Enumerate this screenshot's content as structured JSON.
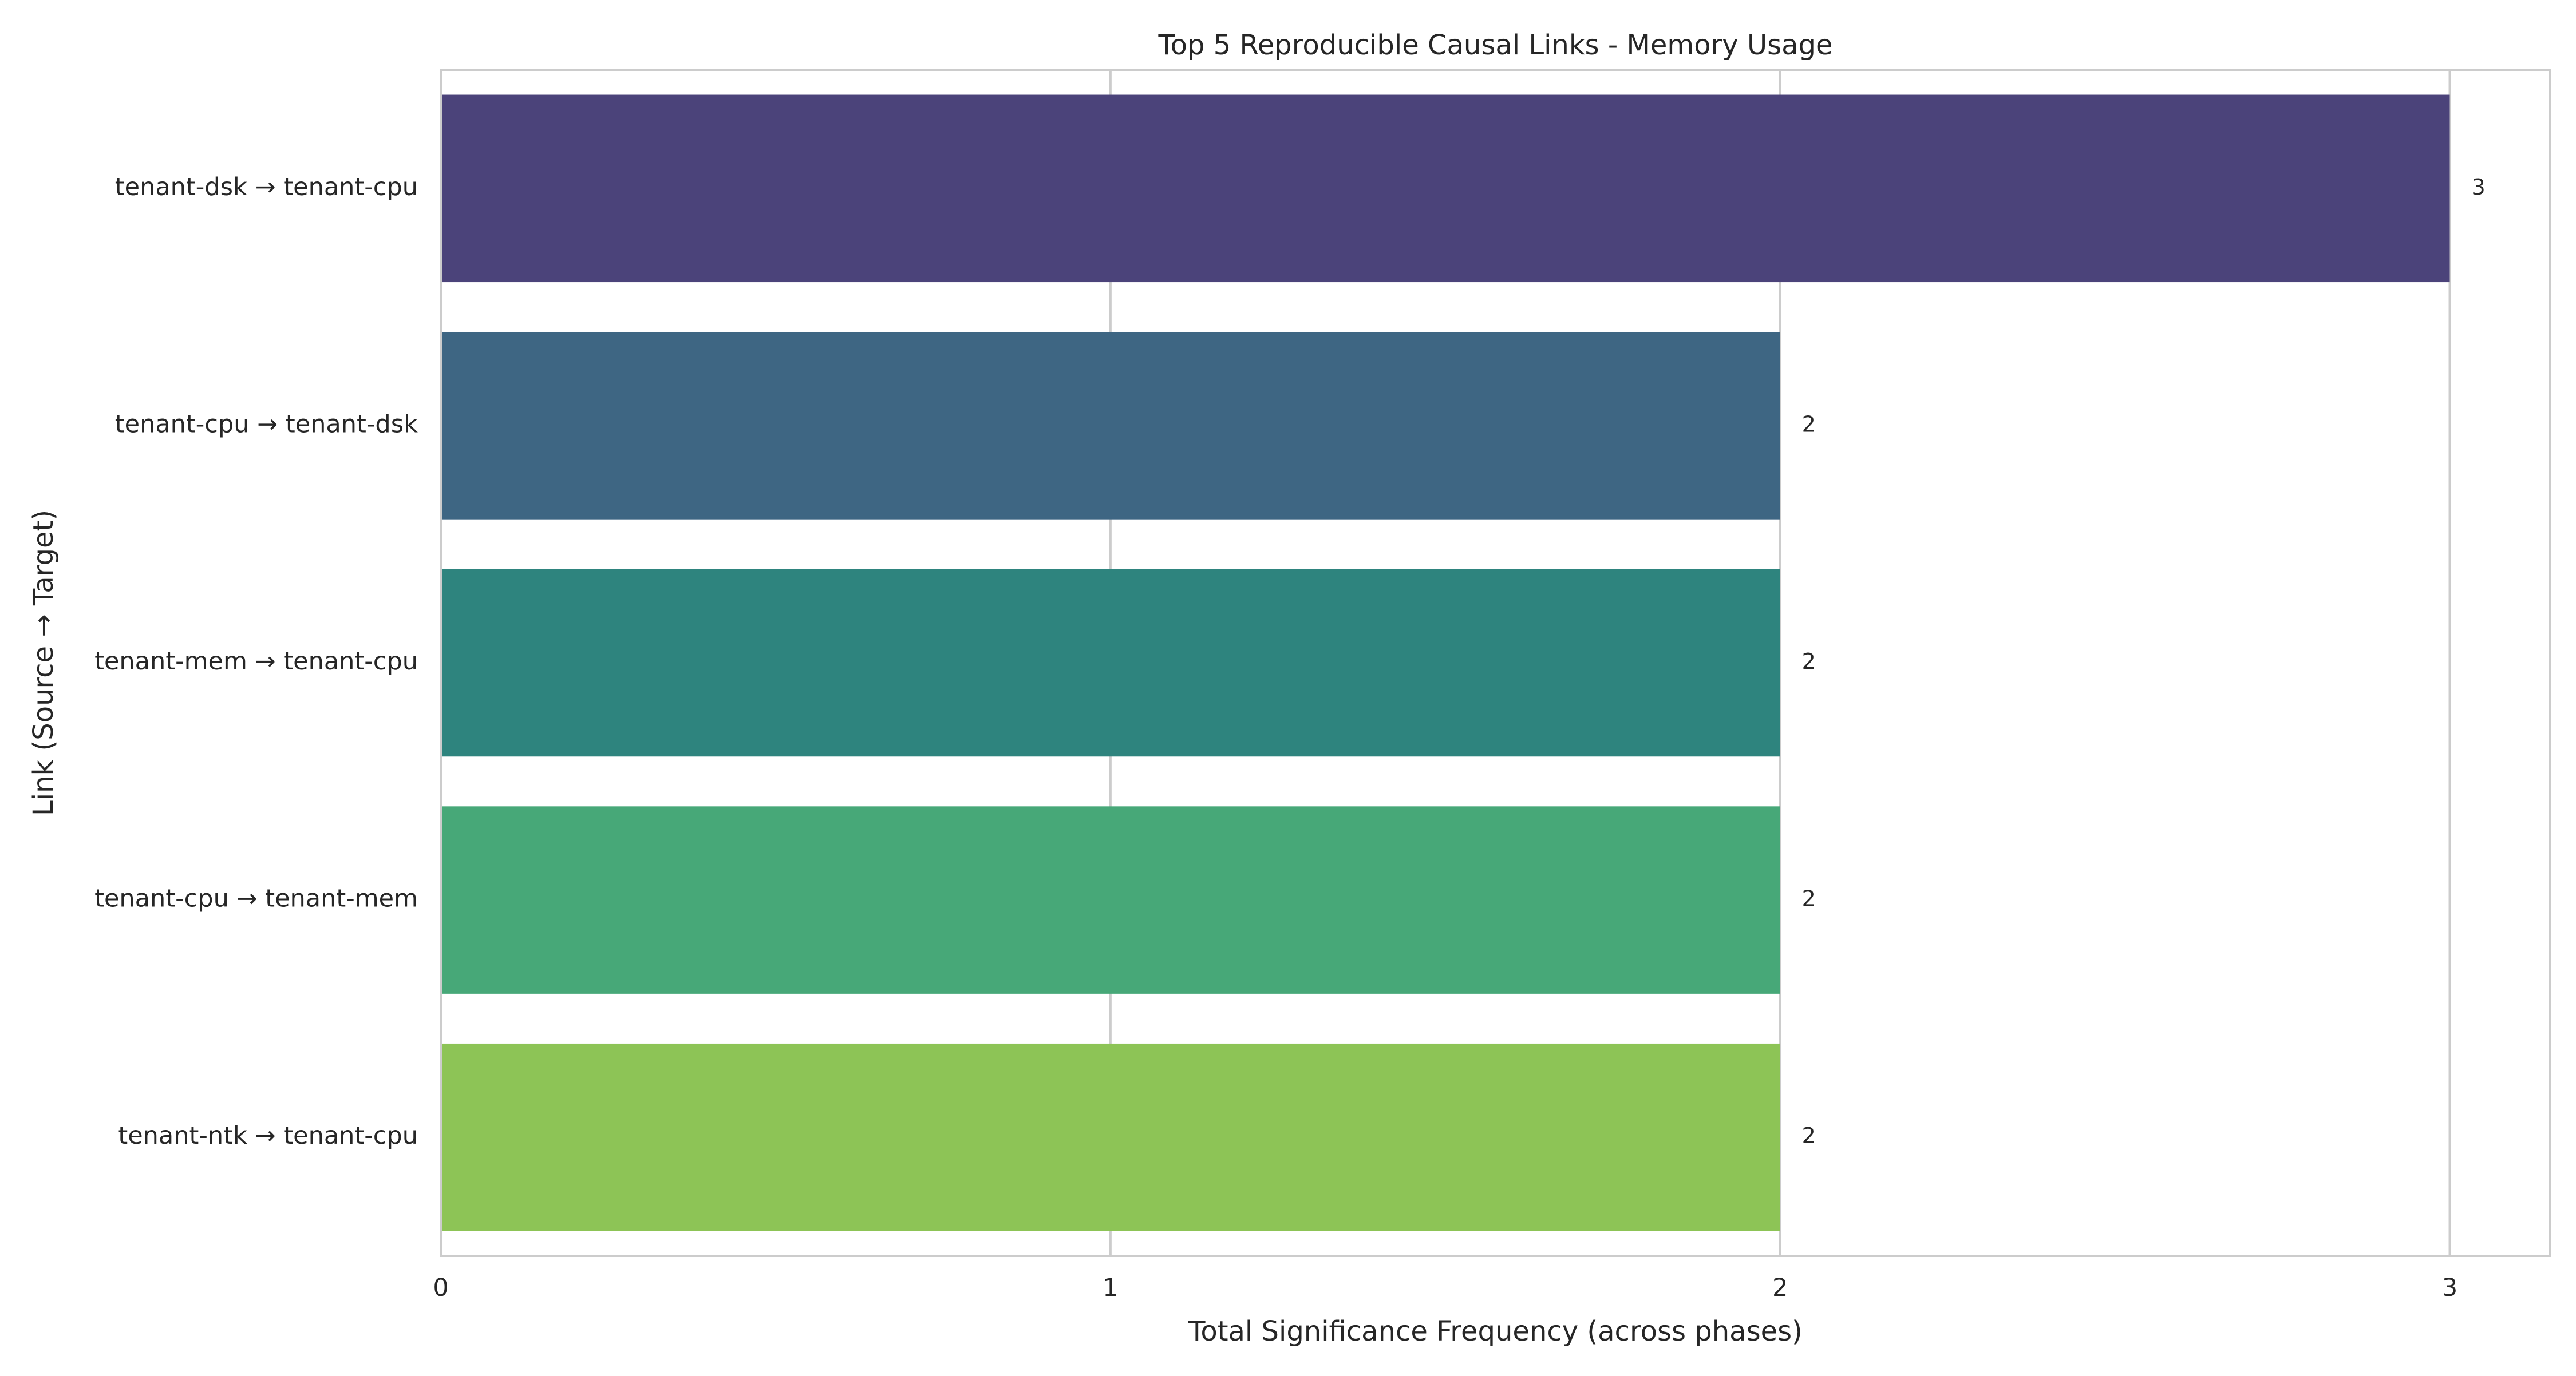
{
  "chart_data": {
    "type": "bar",
    "orientation": "horizontal",
    "title": "Top 5 Reproducible Causal Links - Memory Usage",
    "xlabel": "Total Significance Frequency (across phases)",
    "ylabel": "Link (Source → Target)",
    "categories": [
      "tenant-dsk → tenant-cpu",
      "tenant-cpu → tenant-dsk",
      "tenant-mem → tenant-cpu",
      "tenant-cpu → tenant-mem",
      "tenant-ntk → tenant-cpu"
    ],
    "values": [
      3,
      2,
      2,
      2,
      2
    ],
    "data_labels": [
      "3",
      "2",
      "2",
      "2",
      "2"
    ],
    "xlim": [
      0,
      3.15
    ],
    "x_ticks": [
      0,
      1,
      2,
      3
    ],
    "x_tick_labels": [
      "0",
      "1",
      "2",
      "3"
    ],
    "grid": true,
    "colors": [
      "#4b437a",
      "#3e6683",
      "#2e847e",
      "#47a878",
      "#8dc456"
    ],
    "frame_color": "#cccccc",
    "grid_color": "#cccccc",
    "text_color": "#262626"
  }
}
